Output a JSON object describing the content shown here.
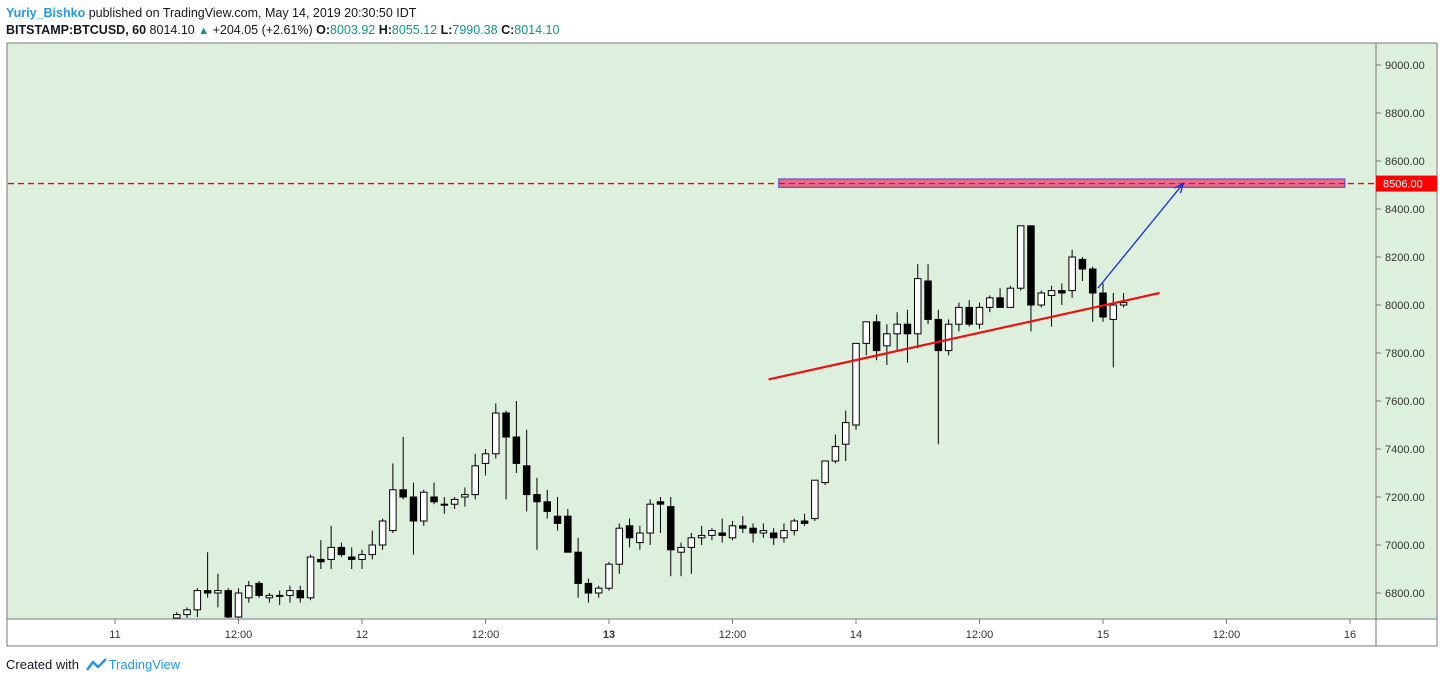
{
  "header": {
    "author": "Yuriy_Bishko",
    "published_text": "published on TradingView.com, May 14, 2019 20:30:50 IDT",
    "symbol": "BITSTAMP:BTCUSD, 60",
    "last": "8014.10",
    "change": "+204.05 (+2.61%)",
    "open_label": "O:",
    "open": "8003.92",
    "high_label": "H:",
    "high": "8055.12",
    "low_label": "L:",
    "low": "7990.38",
    "close_label": "C:",
    "close": "8014.10"
  },
  "footer": {
    "created_with": "Created with",
    "brand": "TradingView"
  },
  "colors": {
    "background": "#ddf0dd",
    "resistance": "#ff0000",
    "zone_fill": "#ea6a8a",
    "zone_border": "#6f4fd0",
    "trendline": "#ee1111",
    "arrow": "#1a2bd8"
  },
  "chart_data": {
    "type": "candlestick",
    "symbol": "BITSTAMP:BTCUSD",
    "interval": "60",
    "ylim": [
      6700,
      9100
    ],
    "yticks": [
      "6800.00",
      "7000.00",
      "7200.00",
      "7400.00",
      "7600.00",
      "7800.00",
      "8000.00",
      "8200.00",
      "8400.00",
      "8600.00",
      "8800.00",
      "9000.00"
    ],
    "xticks": [
      {
        "label": "11",
        "t": 0
      },
      {
        "label": "12:00",
        "t": 12
      },
      {
        "label": "12",
        "t": 24
      },
      {
        "label": "12:00",
        "t": 36
      },
      {
        "label": "13",
        "t": 48
      },
      {
        "label": "12:00",
        "t": 60
      },
      {
        "label": "14",
        "t": 72
      },
      {
        "label": "12:00",
        "t": 84
      },
      {
        "label": "15",
        "t": 96
      },
      {
        "label": "12:00",
        "t": 108
      },
      {
        "label": "16",
        "t": 120
      }
    ],
    "price_label": "8506.00",
    "resistance_level": 8506,
    "zone": {
      "t_start": 64.5,
      "t_end": 119.5,
      "low": 8490,
      "high": 8525
    },
    "trendline": {
      "t1": 63.5,
      "p1": 7690,
      "t2": 101.5,
      "p2": 8050
    },
    "arrow": {
      "t1": 95.5,
      "p1": 8070,
      "t2": 103.8,
      "p2": 8506
    },
    "candles": [
      [
        6,
        6690,
        6720,
        6670,
        6710
      ],
      [
        7,
        6710,
        6740,
        6690,
        6730
      ],
      [
        8,
        6730,
        6820,
        6700,
        6810
      ],
      [
        9,
        6810,
        6970,
        6780,
        6800
      ],
      [
        10,
        6800,
        6880,
        6740,
        6810
      ],
      [
        11,
        6810,
        6820,
        6680,
        6700
      ],
      [
        12,
        6700,
        6820,
        6680,
        6800
      ],
      [
        13,
        6780,
        6850,
        6760,
        6830
      ],
      [
        14,
        6840,
        6850,
        6780,
        6790
      ],
      [
        15,
        6780,
        6800,
        6760,
        6790
      ],
      [
        16,
        6790,
        6810,
        6750,
        6790
      ],
      [
        17,
        6790,
        6830,
        6760,
        6810
      ],
      [
        18,
        6810,
        6830,
        6760,
        6780
      ],
      [
        19,
        6780,
        6960,
        6770,
        6950
      ],
      [
        20,
        6940,
        7020,
        6900,
        6930
      ],
      [
        21,
        6940,
        7080,
        6900,
        6990
      ],
      [
        22,
        6990,
        7010,
        6950,
        6960
      ],
      [
        23,
        6950,
        6990,
        6900,
        6940
      ],
      [
        24,
        6940,
        6980,
        6900,
        6960
      ],
      [
        25,
        6960,
        7060,
        6940,
        7000
      ],
      [
        26,
        7000,
        7110,
        6980,
        7100
      ],
      [
        27,
        7060,
        7340,
        7050,
        7230
      ],
      [
        28,
        7230,
        7450,
        7190,
        7200
      ],
      [
        29,
        7200,
        7260,
        6960,
        7100
      ],
      [
        30,
        7100,
        7230,
        7080,
        7220
      ],
      [
        31,
        7200,
        7260,
        7170,
        7180
      ],
      [
        32,
        7170,
        7200,
        7130,
        7170
      ],
      [
        33,
        7170,
        7200,
        7150,
        7190
      ],
      [
        34,
        7200,
        7240,
        7160,
        7210
      ],
      [
        35,
        7210,
        7380,
        7190,
        7330
      ],
      [
        36,
        7340,
        7400,
        7290,
        7380
      ],
      [
        37,
        7380,
        7590,
        7360,
        7550
      ],
      [
        38,
        7550,
        7560,
        7190,
        7450
      ],
      [
        39,
        7450,
        7600,
        7300,
        7340
      ],
      [
        40,
        7330,
        7480,
        7140,
        7210
      ],
      [
        41,
        7210,
        7280,
        6980,
        7180
      ],
      [
        42,
        7180,
        7230,
        7110,
        7140
      ],
      [
        43,
        7120,
        7200,
        7060,
        7090
      ],
      [
        44,
        7120,
        7150,
        6980,
        6970
      ],
      [
        45,
        6970,
        7030,
        6780,
        6840
      ],
      [
        46,
        6840,
        6860,
        6760,
        6800
      ],
      [
        47,
        6800,
        6830,
        6780,
        6820
      ],
      [
        48,
        6820,
        6930,
        6810,
        6920
      ],
      [
        49,
        6920,
        7090,
        6880,
        7070
      ],
      [
        50,
        7080,
        7110,
        6990,
        7030
      ],
      [
        51,
        7010,
        7080,
        6980,
        7050
      ],
      [
        52,
        7050,
        7190,
        7000,
        7170
      ],
      [
        53,
        7180,
        7200,
        7050,
        7170
      ],
      [
        54,
        7160,
        7200,
        6870,
        6980
      ],
      [
        55,
        6970,
        7010,
        6870,
        6990
      ],
      [
        56,
        6990,
        7050,
        6880,
        7030
      ],
      [
        57,
        7030,
        7080,
        7000,
        7040
      ],
      [
        58,
        7040,
        7070,
        7020,
        7060
      ],
      [
        59,
        7050,
        7110,
        7010,
        7040
      ],
      [
        60,
        7030,
        7100,
        7020,
        7080
      ],
      [
        61,
        7080,
        7120,
        7050,
        7070
      ],
      [
        62,
        7070,
        7090,
        7010,
        7050
      ],
      [
        63,
        7050,
        7090,
        7030,
        7060
      ],
      [
        64,
        7050,
        7070,
        7000,
        7030
      ],
      [
        65,
        7030,
        7090,
        7010,
        7060
      ],
      [
        66,
        7060,
        7110,
        7040,
        7100
      ],
      [
        67,
        7100,
        7130,
        7080,
        7090
      ],
      [
        68,
        7110,
        7270,
        7100,
        7270
      ],
      [
        69,
        7260,
        7340,
        7250,
        7350
      ],
      [
        70,
        7350,
        7460,
        7340,
        7410
      ],
      [
        71,
        7420,
        7560,
        7350,
        7510
      ],
      [
        72,
        7500,
        7840,
        7480,
        7840
      ],
      [
        73,
        7840,
        7930,
        7790,
        7930
      ],
      [
        74,
        7930,
        7960,
        7770,
        7810
      ],
      [
        75,
        7830,
        7920,
        7750,
        7880
      ],
      [
        76,
        7880,
        7970,
        7810,
        7920
      ],
      [
        77,
        7920,
        7980,
        7760,
        7880
      ],
      [
        78,
        7880,
        8170,
        7820,
        8110
      ],
      [
        79,
        8100,
        8170,
        7920,
        7940
      ],
      [
        80,
        7940,
        7980,
        7420,
        7810
      ],
      [
        81,
        7810,
        7940,
        7790,
        7920
      ],
      [
        82,
        7920,
        8010,
        7890,
        7990
      ],
      [
        83,
        7990,
        8020,
        7910,
        7920
      ],
      [
        84,
        7920,
        8010,
        7900,
        7990
      ],
      [
        85,
        7990,
        8040,
        7970,
        8030
      ],
      [
        86,
        8030,
        8070,
        7990,
        7990
      ],
      [
        87,
        7990,
        8080,
        7990,
        8070
      ],
      [
        88,
        8070,
        8330,
        8060,
        8330
      ],
      [
        89,
        8330,
        8330,
        7890,
        8000
      ],
      [
        90,
        8000,
        8060,
        7990,
        8050
      ],
      [
        91,
        8040,
        8080,
        7910,
        8060
      ],
      [
        92,
        8060,
        8090,
        8000,
        8050
      ],
      [
        93,
        8060,
        8230,
        8030,
        8200
      ],
      [
        94,
        8190,
        8200,
        8100,
        8150
      ],
      [
        95,
        8150,
        8160,
        7930,
        8050
      ],
      [
        96,
        8050,
        8090,
        7930,
        7950
      ],
      [
        97,
        7940,
        8050,
        7740,
        8000
      ],
      [
        98,
        8000,
        8050,
        7990,
        8010
      ]
    ]
  }
}
